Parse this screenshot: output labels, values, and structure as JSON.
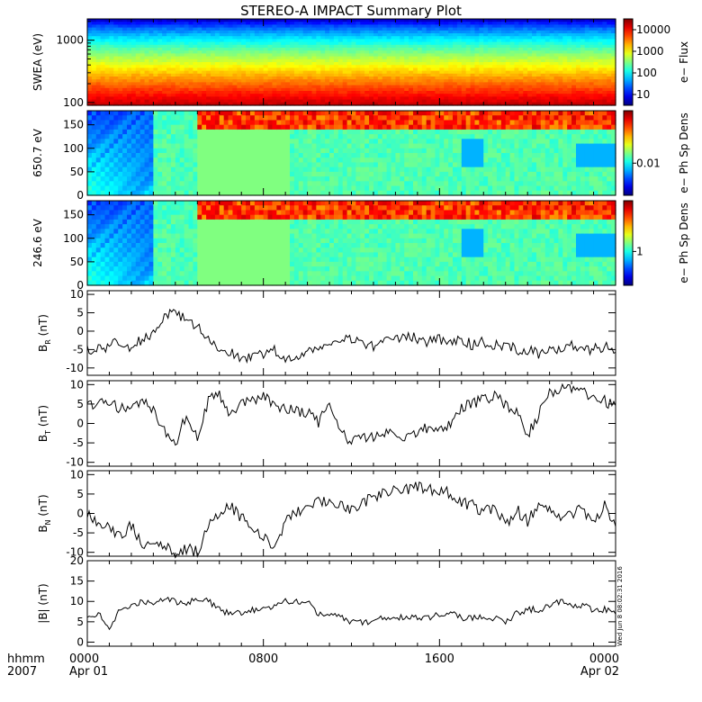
{
  "title": "STEREO-A IMPACT Summary Plot",
  "stamp": "Wed Jun  8 08:02:31 2016",
  "time_axis": {
    "row_label": "hhmm",
    "year": "2007",
    "ticks": [
      {
        "hours": 0,
        "label": "0000",
        "date": "Apr 01"
      },
      {
        "hours": 8,
        "label": "0800",
        "date": ""
      },
      {
        "hours": 16,
        "label": "1600",
        "date": ""
      },
      {
        "hours": 24,
        "label": "0000",
        "date": "Apr 02"
      }
    ],
    "range_hours": [
      0,
      24
    ]
  },
  "chart_data": [
    {
      "type": "heatmap",
      "id": "swea",
      "ylabel": "SWEA (eV)",
      "yscale": "log",
      "ylim": [
        90,
        2200
      ],
      "yticks": [
        100,
        1000
      ],
      "ytick_labels": [
        "100",
        "1000"
      ],
      "colorbar": {
        "label": "e− Flux",
        "ticks": [
          "10",
          "100",
          "1000",
          "10000"
        ]
      },
      "description_of_pattern": "high flux at low energy decreasing with energy"
    },
    {
      "type": "heatmap",
      "id": "pad650",
      "ylabel": "650.7 eV",
      "ylim": [
        0,
        180
      ],
      "yticks": [
        0,
        50,
        100,
        150
      ],
      "colorbar": {
        "label": "e− Ph Sp Dens",
        "ticks": [
          "0.01"
        ]
      }
    },
    {
      "type": "heatmap",
      "id": "pad246",
      "ylabel": "246.6 eV",
      "ylim": [
        0,
        180
      ],
      "yticks": [
        0,
        50,
        100,
        150
      ],
      "colorbar": {
        "label": "e− Ph Sp Dens",
        "ticks": [
          "1"
        ]
      }
    },
    {
      "type": "line",
      "id": "br",
      "ylabel_main": "B",
      "ylabel_sub": "R",
      "ylabel_unit": " (nT)",
      "ylim": [
        -12,
        11
      ],
      "yticks": [
        -10,
        -5,
        0,
        5,
        10
      ],
      "x": [
        0,
        0.5,
        1,
        1.5,
        2,
        2.5,
        3,
        3.5,
        4,
        4.5,
        5,
        5.5,
        6,
        6.5,
        7,
        7.5,
        8,
        8.5,
        9,
        9.5,
        10,
        10.5,
        11,
        11.5,
        12,
        12.5,
        13,
        13.5,
        14,
        14.5,
        15,
        15.5,
        16,
        16.5,
        17,
        17.5,
        18,
        18.5,
        19,
        19.5,
        20,
        20.5,
        21,
        21.5,
        22,
        22.5,
        23,
        23.5,
        24
      ],
      "y": [
        -5,
        -5,
        -4,
        -3,
        -5,
        -2,
        -1,
        4,
        5,
        3,
        1,
        -2,
        -5,
        -6,
        -7,
        -7,
        -6,
        -5,
        -8,
        -7,
        -5,
        -4,
        -4,
        -3,
        -2,
        -3,
        -4,
        -3,
        -2,
        -1,
        -2,
        -3,
        -2,
        -3,
        -2,
        -4,
        -3,
        -4,
        -4,
        -5,
        -5,
        -6,
        -5,
        -5,
        -4,
        -5,
        -5,
        -4,
        -5
      ]
    },
    {
      "type": "line",
      "id": "bt",
      "ylabel_main": "B",
      "ylabel_sub": "T",
      "ylabel_unit": " (nT)",
      "ylim": [
        -11,
        11
      ],
      "yticks": [
        -10,
        -5,
        0,
        5,
        10
      ],
      "x": [
        0,
        0.5,
        1,
        1.5,
        2,
        2.5,
        3,
        3.5,
        4,
        4.5,
        5,
        5.5,
        6,
        6.5,
        7,
        7.5,
        8,
        8.5,
        9,
        9.5,
        10,
        10.5,
        11,
        11.5,
        12,
        12.5,
        13,
        13.5,
        14,
        14.5,
        15,
        15.5,
        16,
        16.5,
        17,
        17.5,
        18,
        18.5,
        19,
        19.5,
        20,
        20.5,
        21,
        21.5,
        22,
        22.5,
        23,
        23.5,
        24
      ],
      "y": [
        5,
        5,
        5,
        4,
        5,
        6,
        3,
        -2,
        -5,
        2,
        -3,
        6,
        7,
        2,
        5,
        6,
        7,
        5,
        4,
        3,
        3,
        0,
        5,
        -1,
        -5,
        -3,
        -4,
        -3,
        -2,
        -4,
        -2,
        -1,
        -2,
        0,
        4,
        5,
        6,
        7,
        5,
        3,
        -3,
        2,
        8,
        9,
        9,
        8,
        7,
        6,
        4
      ]
    },
    {
      "type": "line",
      "id": "bn",
      "ylabel_main": "B",
      "ylabel_sub": "N",
      "ylabel_unit": " (nT)",
      "ylim": [
        -11,
        11
      ],
      "yticks": [
        -10,
        -5,
        0,
        5,
        10
      ],
      "x": [
        0,
        0.5,
        1,
        1.5,
        2,
        2.5,
        3,
        3.5,
        4,
        4.5,
        5,
        5.5,
        6,
        6.5,
        7,
        7.5,
        8,
        8.5,
        9,
        9.5,
        10,
        10.5,
        11,
        11.5,
        12,
        12.5,
        13,
        13.5,
        14,
        14.5,
        15,
        15.5,
        16,
        16.5,
        17,
        17.5,
        18,
        18.5,
        19,
        19.5,
        20,
        20.5,
        21,
        21.5,
        22,
        22.5,
        23,
        23.5,
        24
      ],
      "y": [
        0,
        -2,
        -4,
        -6,
        -3,
        -8,
        -9,
        -8,
        -10,
        -9,
        -10,
        -3,
        0,
        2,
        -1,
        -4,
        -6,
        -9,
        -2,
        0,
        2,
        3,
        3,
        2,
        1,
        3,
        4,
        5,
        6,
        6,
        7,
        6,
        6,
        5,
        3,
        2,
        0,
        2,
        -3,
        1,
        -2,
        2,
        1,
        -1,
        0,
        1,
        -2,
        2,
        -4
      ]
    },
    {
      "type": "line",
      "id": "bmag",
      "ylabel_main": "|B|",
      "ylabel_sub": "",
      "ylabel_unit": " (nT)",
      "ylim": [
        -1,
        20
      ],
      "yticks": [
        0,
        5,
        10,
        15,
        20
      ],
      "x": [
        0,
        0.5,
        1,
        1.5,
        2,
        2.5,
        3,
        3.5,
        4,
        4.5,
        5,
        5.5,
        6,
        6.5,
        7,
        7.5,
        8,
        8.5,
        9,
        9.5,
        10,
        10.5,
        11,
        11.5,
        12,
        12.5,
        13,
        13.5,
        14,
        14.5,
        15,
        15.5,
        16,
        16.5,
        17,
        17.5,
        18,
        18.5,
        19,
        19.5,
        20,
        20.5,
        21,
        21.5,
        22,
        22.5,
        23,
        23.5,
        24
      ],
      "y": [
        6,
        7,
        3,
        8,
        9,
        10,
        9,
        11,
        10,
        9,
        11,
        10,
        8,
        7,
        7,
        8,
        8,
        9,
        10,
        10,
        10,
        7,
        7,
        6,
        5,
        5,
        5,
        6,
        6,
        6,
        6,
        6,
        7,
        7,
        6,
        6,
        6,
        6,
        5,
        7,
        8,
        8,
        9,
        10,
        9,
        9,
        8,
        8,
        7
      ]
    }
  ]
}
